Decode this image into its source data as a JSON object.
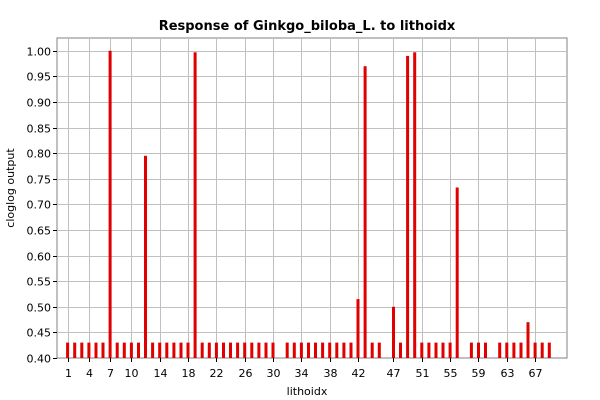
{
  "chart_data": {
    "type": "bar",
    "title": "Response of Ginkgo_biloba_L. to lithoidx",
    "xlabel": "lithoidx",
    "ylabel": "cloglog output",
    "ylim": [
      0.4,
      1.025
    ],
    "yticks": [
      0.4,
      0.45,
      0.5,
      0.55,
      0.6,
      0.65,
      0.7,
      0.75,
      0.8,
      0.85,
      0.9,
      0.95,
      1.0
    ],
    "xlim": [
      -0.5,
      71.5
    ],
    "xtick_values": [
      1,
      4,
      7,
      10,
      14,
      18,
      22,
      26,
      30,
      34,
      38,
      42,
      47,
      51,
      55,
      59,
      63,
      67
    ],
    "xtick_labels": [
      "1",
      "4",
      "7",
      "10",
      "14",
      "18",
      "22",
      "26",
      "30",
      "34",
      "38",
      "42",
      "47",
      "51",
      "55",
      "59",
      "63",
      "67"
    ],
    "grid": true,
    "bar_color": "#e00000",
    "points": [
      {
        "x": 1,
        "y": 0.43
      },
      {
        "x": 2,
        "y": 0.43
      },
      {
        "x": 3,
        "y": 0.43
      },
      {
        "x": 4,
        "y": 0.43
      },
      {
        "x": 5,
        "y": 0.43
      },
      {
        "x": 6,
        "y": 0.43
      },
      {
        "x": 7,
        "y": 1.0
      },
      {
        "x": 8,
        "y": 0.43
      },
      {
        "x": 9,
        "y": 0.43
      },
      {
        "x": 10,
        "y": 0.43
      },
      {
        "x": 11,
        "y": 0.43
      },
      {
        "x": 12,
        "y": 0.795
      },
      {
        "x": 13,
        "y": 0.43
      },
      {
        "x": 14,
        "y": 0.43
      },
      {
        "x": 15,
        "y": 0.43
      },
      {
        "x": 16,
        "y": 0.43
      },
      {
        "x": 17,
        "y": 0.43
      },
      {
        "x": 18,
        "y": 0.43
      },
      {
        "x": 19,
        "y": 0.997
      },
      {
        "x": 20,
        "y": 0.43
      },
      {
        "x": 21,
        "y": 0.43
      },
      {
        "x": 22,
        "y": 0.43
      },
      {
        "x": 23,
        "y": 0.43
      },
      {
        "x": 24,
        "y": 0.43
      },
      {
        "x": 25,
        "y": 0.43
      },
      {
        "x": 26,
        "y": 0.43
      },
      {
        "x": 27,
        "y": 0.43
      },
      {
        "x": 28,
        "y": 0.43
      },
      {
        "x": 29,
        "y": 0.43
      },
      {
        "x": 30,
        "y": 0.43
      },
      {
        "x": 32,
        "y": 0.43
      },
      {
        "x": 33,
        "y": 0.43
      },
      {
        "x": 34,
        "y": 0.43
      },
      {
        "x": 35,
        "y": 0.43
      },
      {
        "x": 36,
        "y": 0.43
      },
      {
        "x": 37,
        "y": 0.43
      },
      {
        "x": 38,
        "y": 0.43
      },
      {
        "x": 39,
        "y": 0.43
      },
      {
        "x": 40,
        "y": 0.43
      },
      {
        "x": 41,
        "y": 0.43
      },
      {
        "x": 42,
        "y": 0.515
      },
      {
        "x": 43,
        "y": 0.97
      },
      {
        "x": 44,
        "y": 0.43
      },
      {
        "x": 45,
        "y": 0.43
      },
      {
        "x": 47,
        "y": 0.5
      },
      {
        "x": 48,
        "y": 0.43
      },
      {
        "x": 49,
        "y": 0.99
      },
      {
        "x": 50,
        "y": 0.997
      },
      {
        "x": 51,
        "y": 0.43
      },
      {
        "x": 52,
        "y": 0.43
      },
      {
        "x": 53,
        "y": 0.43
      },
      {
        "x": 54,
        "y": 0.43
      },
      {
        "x": 55,
        "y": 0.43
      },
      {
        "x": 56,
        "y": 0.733
      },
      {
        "x": 58,
        "y": 0.43
      },
      {
        "x": 59,
        "y": 0.43
      },
      {
        "x": 60,
        "y": 0.43
      },
      {
        "x": 62,
        "y": 0.43
      },
      {
        "x": 63,
        "y": 0.43
      },
      {
        "x": 64,
        "y": 0.43
      },
      {
        "x": 65,
        "y": 0.43
      },
      {
        "x": 66,
        "y": 0.47
      },
      {
        "x": 67,
        "y": 0.43
      },
      {
        "x": 68,
        "y": 0.43
      },
      {
        "x": 69,
        "y": 0.43
      }
    ]
  }
}
